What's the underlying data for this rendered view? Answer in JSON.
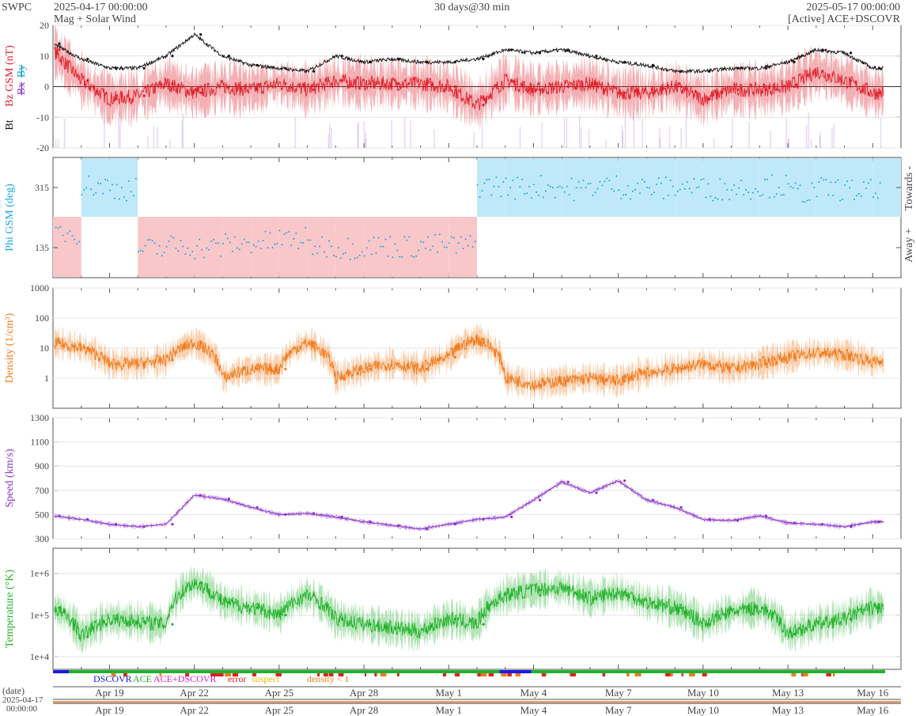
{
  "header": {
    "brand": "SWPC",
    "start_time": "2025-04-17 00:00:00",
    "subtitle": "Mag + Solar Wind",
    "span": "30 days@30 min",
    "end_time": "2025-05-17 00:00:00",
    "source": "[Active] ACE+DSCOVR"
  },
  "colors": {
    "bt": "#111111",
    "bz": "#e0202a",
    "by": "#19a0d8",
    "bx": "#8a3cc8",
    "phi": "#18a6e0",
    "phi_toward_fill": "#bfe9f9",
    "phi_away_fill": "#f9c7c9",
    "density": "#f07b1c",
    "speed": "#8a32c8",
    "temperature": "#21b22a",
    "dscovr": "#1a1ae0",
    "ace": "#21b22a",
    "ace_dscovr": "#e020c8",
    "error": "#e02020",
    "suspect": "#e0c000",
    "density_flag": "#f07b1c"
  },
  "chart_data": [
    {
      "panel": "mag",
      "type": "line",
      "ylabel_parts": [
        "Bt",
        "Bz GSM (nT)",
        "Bx",
        "By"
      ],
      "ylim": [
        -20,
        20
      ],
      "yticks": [
        "20",
        "10",
        "0",
        "-10",
        "-20"
      ],
      "x_days": [
        0,
        1,
        2,
        3,
        4,
        5,
        6,
        7,
        8,
        9,
        10,
        11,
        12,
        13,
        14,
        15,
        16,
        17,
        18,
        19,
        20,
        21,
        22,
        23,
        24,
        25,
        26,
        27,
        28,
        29
      ],
      "series": [
        {
          "name": "Bt",
          "values": [
            14,
            9,
            6,
            6,
            10,
            17,
            10,
            7,
            6,
            5,
            10,
            8,
            9,
            8,
            8,
            9,
            12,
            11,
            12,
            10,
            8,
            7,
            5,
            5,
            6,
            6,
            8,
            12,
            11,
            6
          ]
        },
        {
          "name": "Bz GSM",
          "values": [
            12,
            2,
            -4,
            -3,
            1,
            -2,
            0,
            -1,
            1,
            -1,
            2,
            1,
            1,
            1,
            0,
            -6,
            2,
            -1,
            0,
            1,
            -2,
            -2,
            0,
            -4,
            -1,
            -1,
            0,
            5,
            2,
            -2
          ]
        }
      ]
    },
    {
      "panel": "phi",
      "type": "scatter",
      "ylabel": "Phi GSM (deg)",
      "yticks": [
        "315",
        "135"
      ],
      "right_labels": [
        "Towards -",
        "Away +"
      ],
      "x_days": [
        0,
        1,
        2,
        3,
        4,
        5,
        6,
        7,
        8,
        9,
        10,
        11,
        12,
        13,
        14,
        15,
        16,
        17,
        18,
        19,
        20,
        21,
        22,
        23,
        24,
        25,
        26,
        27,
        28,
        29
      ],
      "sector": [
        "away",
        "toward",
        "toward",
        "away",
        "away",
        "away",
        "away",
        "away",
        "away",
        "away",
        "away",
        "away",
        "away",
        "away",
        "away",
        "toward",
        "toward",
        "toward",
        "toward",
        "toward",
        "toward",
        "toward",
        "toward",
        "toward",
        "toward",
        "toward",
        "toward",
        "toward",
        "toward",
        "toward"
      ],
      "values": [
        180,
        320,
        310,
        130,
        140,
        135,
        145,
        150,
        160,
        140,
        135,
        140,
        138,
        142,
        140,
        320,
        315,
        318,
        310,
        320,
        315,
        312,
        318,
        310,
        315,
        320,
        300,
        310,
        305,
        295
      ]
    },
    {
      "panel": "density",
      "type": "line",
      "ylabel": "Density (1/cm³)",
      "scale": "log",
      "ylim": [
        0.1,
        1000
      ],
      "yticks": [
        "1000",
        "100",
        "10",
        "1"
      ],
      "x_days": [
        0,
        1,
        2,
        3,
        4,
        5,
        6,
        7,
        8,
        9,
        10,
        11,
        12,
        13,
        14,
        15,
        16,
        17,
        18,
        19,
        20,
        21,
        22,
        23,
        24,
        25,
        26,
        27,
        28,
        29
      ],
      "values": [
        15,
        10,
        3,
        3,
        4,
        15,
        1,
        2,
        2,
        15,
        1,
        2,
        3,
        2,
        5,
        20,
        1,
        0.6,
        0.8,
        1,
        0.8,
        1.5,
        2,
        3,
        2,
        3,
        5,
        7,
        6,
        3.5
      ]
    },
    {
      "panel": "speed",
      "type": "line",
      "ylabel": "Speed (km/s)",
      "ylim": [
        300,
        1300
      ],
      "yticks": [
        "1300",
        "1100",
        "900",
        "700",
        "500",
        "300"
      ],
      "x_days": [
        0,
        1,
        2,
        3,
        4,
        5,
        6,
        7,
        8,
        9,
        10,
        11,
        12,
        13,
        14,
        15,
        16,
        17,
        18,
        19,
        20,
        21,
        22,
        23,
        24,
        25,
        26,
        27,
        28,
        29
      ],
      "values": [
        490,
        460,
        420,
        400,
        420,
        660,
        630,
        560,
        500,
        510,
        480,
        440,
        410,
        380,
        420,
        460,
        480,
        620,
        770,
        680,
        780,
        620,
        560,
        460,
        450,
        490,
        430,
        420,
        400,
        440
      ]
    },
    {
      "panel": "temperature",
      "type": "line",
      "ylabel": "Temperature (°K)",
      "scale": "log",
      "ylim": [
        5000,
        4000000
      ],
      "yticks": [
        "1e+6",
        "1e+5",
        "1e+4"
      ],
      "x_days": [
        0,
        1,
        2,
        3,
        4,
        5,
        6,
        7,
        8,
        9,
        10,
        11,
        12,
        13,
        14,
        15,
        16,
        17,
        18,
        19,
        20,
        21,
        22,
        23,
        24,
        25,
        26,
        27,
        28,
        29
      ],
      "values": [
        150000,
        30000,
        80000,
        70000,
        60000,
        600000,
        200000,
        150000,
        100000,
        300000,
        80000,
        60000,
        50000,
        40000,
        80000,
        60000,
        300000,
        400000,
        450000,
        250000,
        350000,
        200000,
        150000,
        60000,
        120000,
        150000,
        35000,
        60000,
        80000,
        150000
      ]
    }
  ],
  "legend": {
    "dscovr": "DSCOVR",
    "ace": "ACE",
    "ace_dscovr": "ACE+DSCOVR",
    "error": "error",
    "suspect": "suspect",
    "density": "density < 1"
  },
  "x_axis": {
    "date_label": "(date)",
    "origin_date": "2025-04-17",
    "origin_time": "00:00:00",
    "tick_days": [
      2,
      5,
      8,
      11,
      14,
      17,
      20,
      23,
      26,
      29
    ],
    "tick_labels": [
      "Apr 19",
      "Apr 22",
      "Apr 25",
      "Apr 28",
      "May 1",
      "May 4",
      "May 7",
      "May 10",
      "May 13",
      "May 16"
    ]
  }
}
